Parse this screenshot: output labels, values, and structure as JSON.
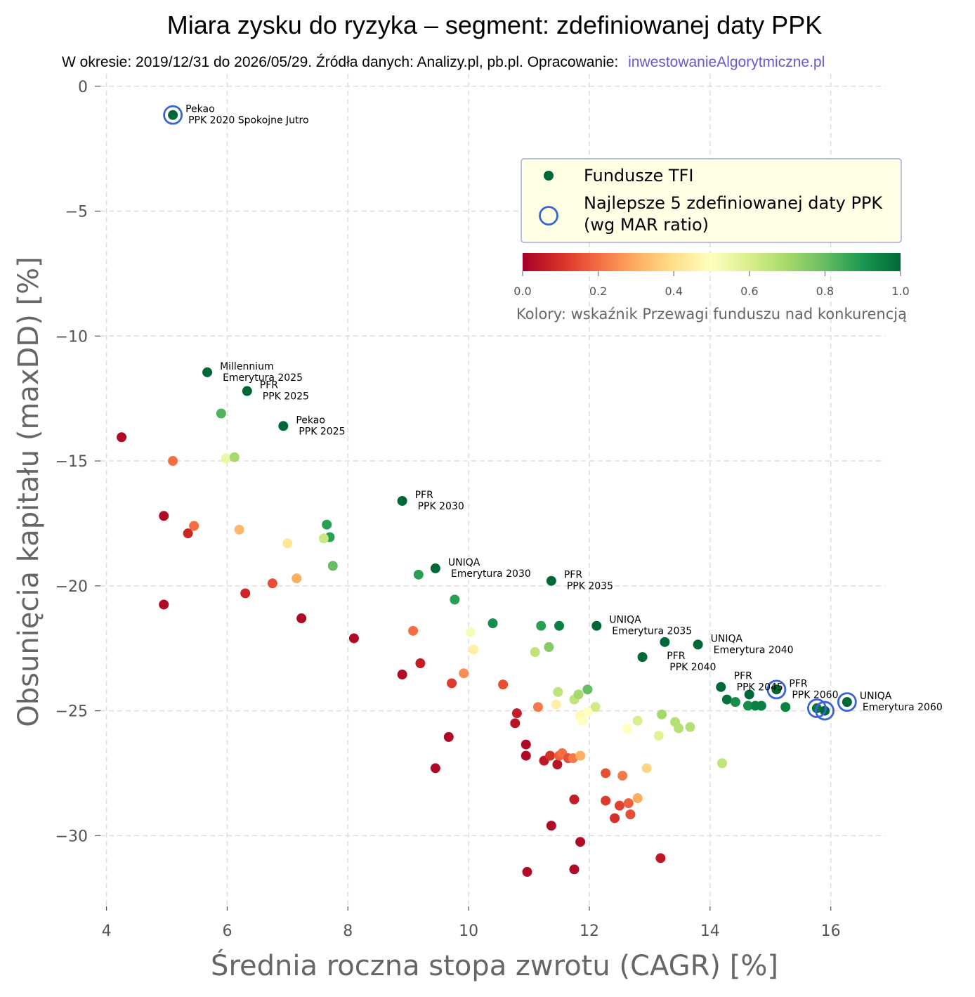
{
  "chart_data": {
    "type": "scatter",
    "title": "Miara zysku do ryzyka – segment: zdefiniowanej daty PPK",
    "subtitle": "W okresie: 2019/12/31 do 2026/05/29. Źródła danych: Analizy.pl, pb.pl. Opracowanie:",
    "subtitle_link": "inwestowanieAlgorytmiczne.pl",
    "xlabel": "Średnia roczna stopa zwrotu (CAGR) [%]",
    "ylabel": "Obsunięcia kapitału (maxDD) [%]",
    "xlim": [
      3.9,
      16.9
    ],
    "ylim": [
      -33.0,
      0.5
    ],
    "x_ticks": [
      4,
      6,
      8,
      10,
      12,
      14,
      16
    ],
    "y_ticks": [
      0,
      -5,
      -10,
      -15,
      -20,
      -25,
      -30
    ],
    "grid": true,
    "legend": {
      "placement": "upper-right",
      "series_label": "Fundusze TFI",
      "highlight_label_line1": "Najlepsze 5 zdefiniowanej daty PPK",
      "highlight_label_line2": "(wg MAR ratio)"
    },
    "colorbar": {
      "label": "Kolory: wskaźnik Przewagi funduszu nad konkurencją",
      "ticks": [
        "0.0",
        "0.2",
        "0.4",
        "0.6",
        "0.8",
        "1.0"
      ],
      "colormap": "RdYlGn",
      "range": [
        0,
        1
      ]
    },
    "points": [
      {
        "x": 5.1,
        "y": -1.15,
        "c": 1.0,
        "hl": true,
        "label1": "Pekao",
        "label2": "PPK 2020 Spokojne Jutro"
      },
      {
        "x": 5.67,
        "y": -11.45,
        "c": 1.0,
        "label1": "Millennium",
        "label2": "Emerytura 2025"
      },
      {
        "x": 6.33,
        "y": -12.2,
        "c": 1.0,
        "label1": "PFR",
        "label2": "PPK 2025"
      },
      {
        "x": 5.9,
        "y": -13.1,
        "c": 0.83
      },
      {
        "x": 6.93,
        "y": -13.6,
        "c": 1.0,
        "label1": "Pekao",
        "label2": "PPK 2025"
      },
      {
        "x": 4.25,
        "y": -14.05,
        "c": 0.02
      },
      {
        "x": 5.1,
        "y": -15.0,
        "c": 0.2
      },
      {
        "x": 5.98,
        "y": -14.9,
        "c": 0.55
      },
      {
        "x": 6.12,
        "y": -14.85,
        "c": 0.7
      },
      {
        "x": 8.9,
        "y": -16.6,
        "c": 1.0,
        "label1": "PFR",
        "label2": "PPK 2030"
      },
      {
        "x": 4.95,
        "y": -17.2,
        "c": 0.02
      },
      {
        "x": 5.35,
        "y": -17.9,
        "c": 0.08
      },
      {
        "x": 5.45,
        "y": -17.6,
        "c": 0.2
      },
      {
        "x": 6.2,
        "y": -17.75,
        "c": 0.32
      },
      {
        "x": 7.0,
        "y": -18.3,
        "c": 0.42
      },
      {
        "x": 7.65,
        "y": -17.55,
        "c": 0.88
      },
      {
        "x": 7.7,
        "y": -18.05,
        "c": 0.88
      },
      {
        "x": 7.6,
        "y": -18.1,
        "c": 0.63
      },
      {
        "x": 7.75,
        "y": -19.2,
        "c": 0.8
      },
      {
        "x": 9.17,
        "y": -19.55,
        "c": 0.88
      },
      {
        "x": 9.45,
        "y": -19.3,
        "c": 1.0,
        "label1": "UNIQA",
        "label2": "Emerytura 2030"
      },
      {
        "x": 11.37,
        "y": -19.8,
        "c": 1.0,
        "label1": "PFR",
        "label2": "PPK 2035"
      },
      {
        "x": 6.75,
        "y": -19.9,
        "c": 0.15
      },
      {
        "x": 7.15,
        "y": -19.7,
        "c": 0.3
      },
      {
        "x": 6.3,
        "y": -20.3,
        "c": 0.08
      },
      {
        "x": 4.95,
        "y": -20.75,
        "c": 0.02
      },
      {
        "x": 9.77,
        "y": -20.55,
        "c": 0.88
      },
      {
        "x": 7.23,
        "y": -21.3,
        "c": 0.02
      },
      {
        "x": 8.1,
        "y": -22.1,
        "c": 0.02
      },
      {
        "x": 9.08,
        "y": -21.8,
        "c": 0.2
      },
      {
        "x": 10.03,
        "y": -21.85,
        "c": 0.52
      },
      {
        "x": 10.08,
        "y": -22.55,
        "c": 0.45
      },
      {
        "x": 10.4,
        "y": -21.5,
        "c": 0.92
      },
      {
        "x": 11.2,
        "y": -21.6,
        "c": 0.88
      },
      {
        "x": 11.5,
        "y": -21.6,
        "c": 0.95
      },
      {
        "x": 12.12,
        "y": -21.6,
        "c": 1.0,
        "label1": "UNIQA",
        "label2": "Emerytura 2035"
      },
      {
        "x": 11.33,
        "y": -22.45,
        "c": 0.75
      },
      {
        "x": 11.1,
        "y": -22.65,
        "c": 0.65
      },
      {
        "x": 12.88,
        "y": -22.85,
        "c": 1.0
      },
      {
        "x": 13.25,
        "y": -22.25,
        "c": 1.0
      },
      {
        "x": 13.8,
        "y": -22.35,
        "c": 1.0,
        "label1": "UNIQA",
        "label2": "Emerytura 2040"
      },
      {
        "x": 9.2,
        "y": -23.1,
        "c": 0.06
      },
      {
        "x": 8.9,
        "y": -23.55,
        "c": 0.02
      },
      {
        "x": 9.72,
        "y": -23.9,
        "c": 0.12
      },
      {
        "x": 9.92,
        "y": -23.5,
        "c": 0.25
      },
      {
        "x": 10.57,
        "y": -23.95,
        "c": 0.15
      },
      {
        "x": 14.18,
        "y": -24.05,
        "c": 1.0,
        "label1": "PFR",
        "label2": "PPK 2040",
        "label_side": "left"
      },
      {
        "x": 14.28,
        "y": -24.55,
        "c": 0.98
      },
      {
        "x": 14.65,
        "y": -24.35,
        "c": 1.0,
        "label1": "PFR",
        "label2": "PPK 2045",
        "label_side": "lefttop"
      },
      {
        "x": 14.42,
        "y": -24.65,
        "c": 0.92
      },
      {
        "x": 14.63,
        "y": -24.8,
        "c": 0.92
      },
      {
        "x": 14.75,
        "y": -24.8,
        "c": 0.95
      },
      {
        "x": 14.85,
        "y": -24.8,
        "c": 0.95
      },
      {
        "x": 15.1,
        "y": -24.15,
        "c": 1.0,
        "hl": true,
        "label1": "PFR",
        "label2": "PPK 2060"
      },
      {
        "x": 15.25,
        "y": -24.85,
        "c": 0.95
      },
      {
        "x": 15.77,
        "y": -24.9,
        "c": 0.97,
        "hl": true
      },
      {
        "x": 15.9,
        "y": -25.0,
        "c": 1.0,
        "hl": true
      },
      {
        "x": 16.27,
        "y": -24.65,
        "c": 1.0,
        "hl": true,
        "label1": "UNIQA",
        "label2": "Emerytura 2060"
      },
      {
        "x": 11.48,
        "y": -24.25,
        "c": 0.65
      },
      {
        "x": 11.45,
        "y": -24.75,
        "c": 0.45
      },
      {
        "x": 11.15,
        "y": -24.85,
        "c": 0.22
      },
      {
        "x": 11.75,
        "y": -24.55,
        "c": 0.65
      },
      {
        "x": 11.82,
        "y": -24.35,
        "c": 0.7
      },
      {
        "x": 11.97,
        "y": -24.15,
        "c": 0.8
      },
      {
        "x": 12.1,
        "y": -24.85,
        "c": 0.62
      },
      {
        "x": 11.85,
        "y": -25.2,
        "c": 0.48
      },
      {
        "x": 11.97,
        "y": -25.05,
        "c": 0.5
      },
      {
        "x": 11.88,
        "y": -25.4,
        "c": 0.5
      },
      {
        "x": 10.8,
        "y": -25.1,
        "c": 0.06
      },
      {
        "x": 10.77,
        "y": -25.5,
        "c": 0.04
      },
      {
        "x": 12.63,
        "y": -25.7,
        "c": 0.5
      },
      {
        "x": 12.8,
        "y": -25.4,
        "c": 0.6
      },
      {
        "x": 13.2,
        "y": -25.15,
        "c": 0.7
      },
      {
        "x": 13.15,
        "y": -26.0,
        "c": 0.58
      },
      {
        "x": 13.42,
        "y": -25.45,
        "c": 0.67
      },
      {
        "x": 13.48,
        "y": -25.7,
        "c": 0.67
      },
      {
        "x": 13.67,
        "y": -25.65,
        "c": 0.67
      },
      {
        "x": 9.67,
        "y": -26.05,
        "c": 0.02
      },
      {
        "x": 10.95,
        "y": -26.35,
        "c": 0.02
      },
      {
        "x": 10.95,
        "y": -26.8,
        "c": 0.02
      },
      {
        "x": 11.25,
        "y": -27.0,
        "c": 0.05
      },
      {
        "x": 11.35,
        "y": -26.8,
        "c": 0.1
      },
      {
        "x": 11.47,
        "y": -27.15,
        "c": 0.04
      },
      {
        "x": 11.5,
        "y": -26.8,
        "c": 0.18
      },
      {
        "x": 11.55,
        "y": -26.7,
        "c": 0.2
      },
      {
        "x": 11.65,
        "y": -26.9,
        "c": 0.15
      },
      {
        "x": 11.73,
        "y": -26.9,
        "c": 0.22
      },
      {
        "x": 11.85,
        "y": -26.8,
        "c": 0.3
      },
      {
        "x": 9.45,
        "y": -27.3,
        "c": 0.02
      },
      {
        "x": 12.27,
        "y": -27.5,
        "c": 0.15
      },
      {
        "x": 12.55,
        "y": -27.6,
        "c": 0.22
      },
      {
        "x": 12.95,
        "y": -27.3,
        "c": 0.38
      },
      {
        "x": 14.2,
        "y": -27.1,
        "c": 0.65
      },
      {
        "x": 11.75,
        "y": -28.55,
        "c": 0.06
      },
      {
        "x": 12.27,
        "y": -28.6,
        "c": 0.12
      },
      {
        "x": 12.5,
        "y": -28.8,
        "c": 0.13
      },
      {
        "x": 12.65,
        "y": -28.7,
        "c": 0.18
      },
      {
        "x": 12.8,
        "y": -28.5,
        "c": 0.3
      },
      {
        "x": 12.42,
        "y": -29.3,
        "c": 0.1
      },
      {
        "x": 12.68,
        "y": -29.15,
        "c": 0.15
      },
      {
        "x": 11.37,
        "y": -29.6,
        "c": 0.02
      },
      {
        "x": 11.85,
        "y": -30.25,
        "c": 0.02
      },
      {
        "x": 13.18,
        "y": -30.9,
        "c": 0.05
      },
      {
        "x": 10.97,
        "y": -31.45,
        "c": 0.02
      },
      {
        "x": 11.75,
        "y": -31.35,
        "c": 0.02
      }
    ]
  }
}
